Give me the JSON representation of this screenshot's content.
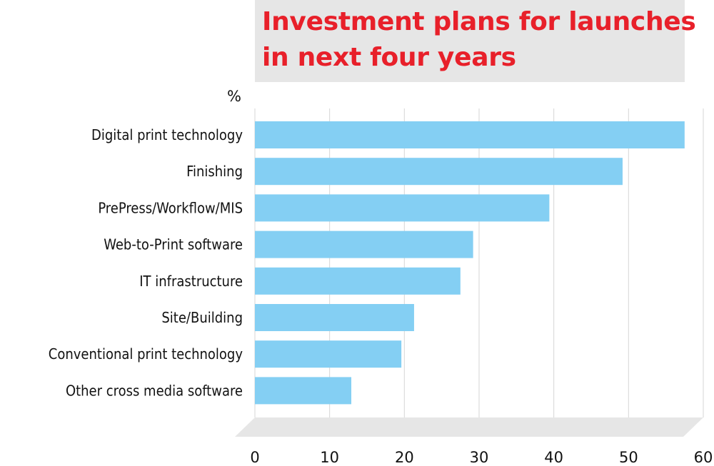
{
  "title": {
    "line1": "Investment plans for launches",
    "line2": "in next four years"
  },
  "colors": {
    "title": "#e8202a",
    "title_background": "#e6e6e6",
    "bar": "#84cff3",
    "grid": "#d6d6d6",
    "floor": "#e6e6e6"
  },
  "chart_data": {
    "type": "bar",
    "orientation": "horizontal",
    "title": "Investment plans for launches in next four years",
    "unit_label": "%",
    "xlabel": "",
    "ylabel": "",
    "categories": [
      "Digital print technology",
      "Finishing",
      "PrePress/Workflow/MIS",
      "Web-to-Print software",
      "IT infrastructure",
      "Site/Building",
      "Conventional print technology",
      "Other cross media software"
    ],
    "values": [
      57.5,
      49.2,
      39.4,
      29.2,
      27.5,
      21.3,
      19.6,
      12.9
    ],
    "xlim": [
      0,
      60
    ],
    "xticks": [
      "0",
      "10",
      "20",
      "30",
      "40",
      "50",
      "60"
    ],
    "grid": "vertical"
  }
}
